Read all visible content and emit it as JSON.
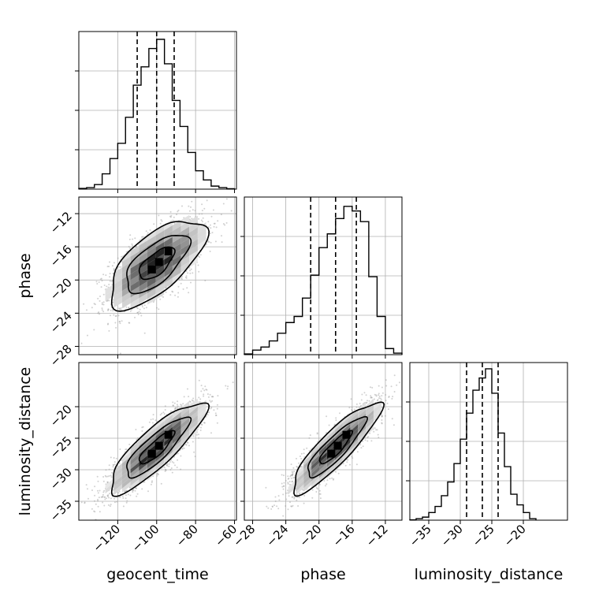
{
  "chart_data": {
    "type": "corner",
    "parameters": [
      "geocent_time",
      "phase",
      "luminosity_distance"
    ],
    "axis_labels": {
      "x": [
        "geocent_time",
        "phase",
        "luminosity_distance"
      ],
      "y": [
        "phase",
        "luminosity_distance"
      ]
    },
    "ranges": {
      "geocent_time": [
        -140,
        -59
      ],
      "phase": [
        -29,
        -10
      ],
      "luminosity_distance": [
        -38,
        -13
      ]
    },
    "ticks": {
      "geocent_time": [
        -120,
        -100,
        -80,
        -60
      ],
      "phase": [
        -28,
        -24,
        -20,
        -16,
        -12
      ],
      "luminosity_distance": [
        -35,
        -30,
        -25,
        -20
      ]
    },
    "tick_labels": {
      "geocent_time": [
        "−120",
        "−100",
        "−80",
        "−60"
      ],
      "phase": [
        "−28",
        "−24",
        "−20",
        "−16",
        "−12"
      ],
      "luminosity_distance": [
        "−35",
        "−30",
        "−25",
        "−20"
      ]
    },
    "quantiles": {
      "geocent_time": [
        -110,
        -100,
        -91
      ],
      "phase": [
        -21,
        -18,
        -15.5
      ],
      "luminosity_distance": [
        -29,
        -26.5,
        -24
      ]
    },
    "histograms": {
      "geocent_time": {
        "bin_edges": [
          -140,
          -136,
          -132,
          -128,
          -124,
          -120,
          -116,
          -112,
          -108,
          -104,
          -100,
          -96,
          -92,
          -88,
          -84,
          -80,
          -76,
          -72,
          -68,
          -64,
          -60
        ],
        "counts": [
          0.005,
          0.01,
          0.03,
          0.1,
          0.2,
          0.3,
          0.47,
          0.68,
          0.8,
          0.92,
          0.98,
          0.82,
          0.58,
          0.41,
          0.24,
          0.12,
          0.06,
          0.02,
          0.01,
          0.003
        ]
      },
      "phase": {
        "bin_edges": [
          -29,
          -28,
          -27,
          -26,
          -25,
          -24,
          -23,
          -22,
          -21,
          -20,
          -19,
          -18,
          -17,
          -16,
          -15,
          -14,
          -13,
          -12,
          -11,
          -10
        ],
        "counts": [
          0.005,
          0.03,
          0.05,
          0.09,
          0.14,
          0.21,
          0.25,
          0.37,
          0.52,
          0.7,
          0.79,
          0.89,
          0.97,
          0.94,
          0.87,
          0.51,
          0.25,
          0.04,
          0.01
        ]
      },
      "luminosity_distance": {
        "bin_edges": [
          -38,
          -37,
          -36,
          -35,
          -34,
          -33,
          -32,
          -31,
          -30,
          -29,
          -28,
          -27,
          -26,
          -25,
          -24,
          -23,
          -22,
          -21,
          -20,
          -19,
          -18
        ],
        "counts": [
          0.002,
          0.01,
          0.02,
          0.05,
          0.09,
          0.16,
          0.25,
          0.37,
          0.53,
          0.7,
          0.85,
          0.93,
          0.99,
          0.83,
          0.57,
          0.35,
          0.17,
          0.1,
          0.05,
          0.01
        ]
      }
    },
    "pairs": [
      {
        "x": "geocent_time",
        "y": "phase",
        "x_mean": -100,
        "y_mean": -18,
        "x_sd": 12,
        "y_sd": 2.6,
        "corr": 0.66
      },
      {
        "x": "geocent_time",
        "y": "luminosity_distance",
        "x_mean": -100,
        "y_mean": -26.5,
        "x_sd": 12,
        "y_sd": 3.5,
        "corr": 0.85
      },
      {
        "x": "phase",
        "y": "luminosity_distance",
        "x_mean": -18,
        "y_mean": -26.5,
        "x_sd": 2.6,
        "y_sd": 3.5,
        "corr": 0.88
      }
    ],
    "grid": true,
    "colors": {
      "hist": "#000000",
      "points": "#9a9a9a",
      "contour": "#000000",
      "density_max": "#000000"
    }
  }
}
